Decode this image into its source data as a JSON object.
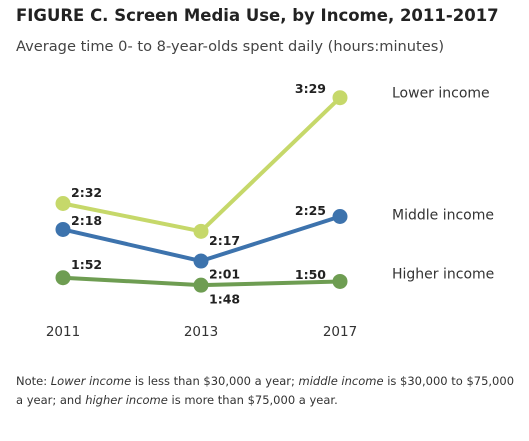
{
  "figure": {
    "title": "FIGURE C. Screen Media Use, by Income, 2011-2017",
    "subtitle": "Average time 0- to 8-year-olds spent daily (hours:minutes)"
  },
  "note": {
    "prefix": "Note: ",
    "lower_term": "Lower income",
    "lower_text": " is less than $30,000 a year; ",
    "middle_term": "middle income",
    "middle_text": " is $30,000 to $75,000 a year; and ",
    "higher_term": "higher income",
    "higher_text": " is more than $75,000 a year."
  },
  "chart_data": {
    "type": "line",
    "title": "FIGURE C. Screen Media Use, by Income, 2011-2017",
    "subtitle": "Average time 0- to 8-year-olds spent daily (hours:minutes)",
    "x": [
      "2011",
      "2013",
      "2017"
    ],
    "y_unit": "minutes",
    "ylim": [
      100,
      215
    ],
    "grid": false,
    "legend": "inline labels at line ends",
    "series": [
      {
        "name": "Lower income",
        "color": "#c6d86a",
        "values": [
          152,
          137,
          209
        ],
        "labels": [
          "2:32",
          "2:17",
          "3:29"
        ]
      },
      {
        "name": "Middle income",
        "color": "#3d73ad",
        "values": [
          138,
          121,
          145
        ],
        "labels": [
          "2:18",
          "2:01",
          "2:25"
        ]
      },
      {
        "name": "Higher income",
        "color": "#6e9d52",
        "values": [
          112,
          108,
          110
        ],
        "labels": [
          "1:52",
          "1:48",
          "1:50"
        ]
      }
    ]
  }
}
